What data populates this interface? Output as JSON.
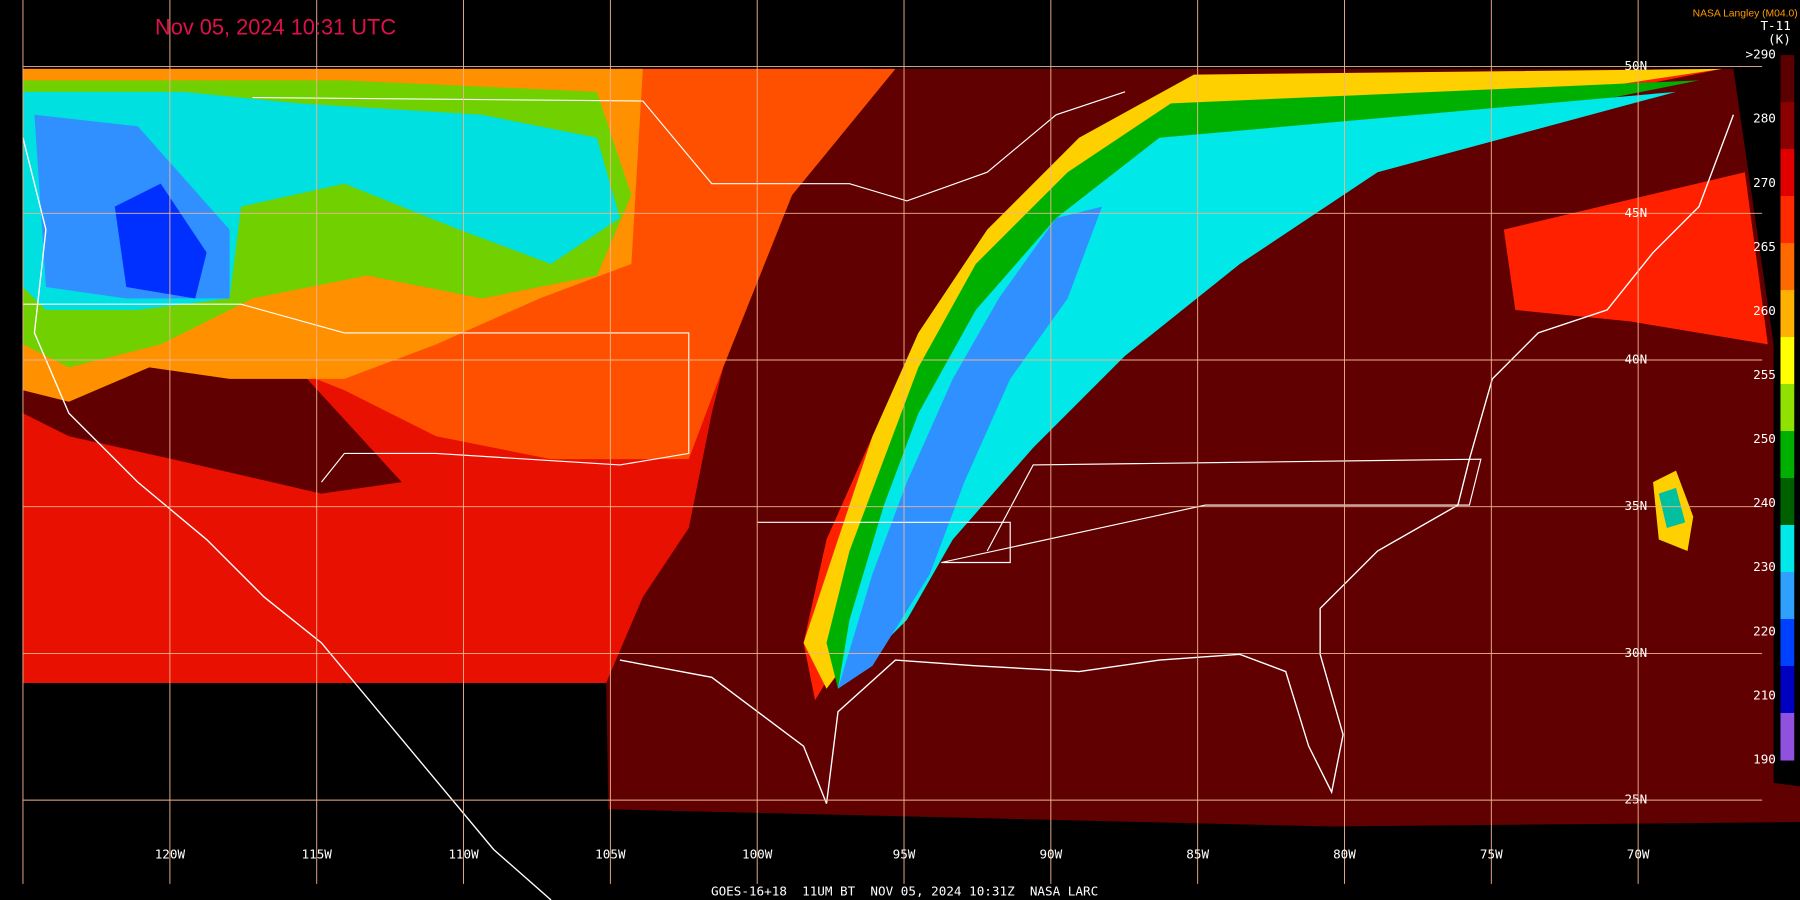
{
  "header": {
    "title": "Nov 05, 2024 10:31 UTC",
    "credit": "NASA Langley (M04.0)",
    "product": "T-11",
    "unit": "(K)"
  },
  "colorbar": {
    "labels": [
      ">290",
      "280",
      "270",
      "265",
      "260",
      "255",
      "250",
      "240",
      "230",
      "220",
      "210",
      "190"
    ],
    "colors": [
      "#5a0000",
      "#8b0000",
      "#e00000",
      "#ff2a00",
      "#ff6a00",
      "#ffb000",
      "#ffff00",
      "#90e000",
      "#00b000",
      "#006000",
      "#00e8e8",
      "#30a0ff",
      "#0040ff",
      "#0000c0",
      "#9050e0"
    ]
  },
  "grid": {
    "longitudes": [
      "120W",
      "115W",
      "110W",
      "105W",
      "100W",
      "95W",
      "90W",
      "85W",
      "80W",
      "75W",
      "70W"
    ],
    "latitudes": [
      "50N",
      "45N",
      "40N",
      "35N",
      "30N",
      "25N"
    ]
  },
  "footer": "GOES-16+18  11UM BT  NOV 05, 2024 10:31Z  NASA LARC"
}
